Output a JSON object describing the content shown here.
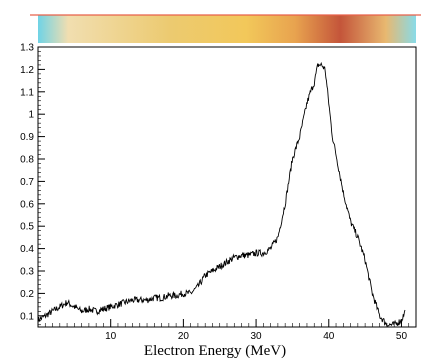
{
  "chart_data": {
    "type": "line",
    "title": "",
    "xlabel": "Electron Energy (MeV)",
    "ylabel": "",
    "xlim": [
      0,
      52
    ],
    "ylim": [
      0.05,
      1.3
    ],
    "grid": false,
    "x_ticks": [
      10,
      20,
      30,
      40,
      50
    ],
    "y_ticks": [
      0.1,
      0.2,
      0.3,
      0.4,
      0.5,
      0.6,
      0.7,
      0.8,
      0.9,
      1,
      1.1,
      1.2,
      1.3
    ],
    "spectrum_strip_colors": [
      "#6fd3e6",
      "#f1deb0",
      "#ecca70",
      "#f2c85a",
      "#e8a34f",
      "#c4553a",
      "#e8b870",
      "#88dbe8"
    ],
    "header_line_color": "#e8604a",
    "series": [
      {
        "values_x": [
          0,
          1,
          2,
          3,
          4,
          5,
          6,
          7,
          8,
          9,
          10,
          11,
          12,
          13,
          14,
          15,
          16,
          17,
          18,
          19,
          20,
          21,
          22,
          23,
          24,
          25,
          26,
          27,
          28,
          29,
          30,
          31,
          32,
          33,
          34,
          35,
          36,
          37,
          37.5,
          38,
          38.5,
          39,
          39.5,
          40,
          40.5,
          41,
          42,
          43,
          44,
          45,
          46,
          47,
          48,
          49,
          50,
          50.5
        ],
        "values_y": [
          0.08,
          0.1,
          0.12,
          0.14,
          0.16,
          0.14,
          0.12,
          0.13,
          0.12,
          0.13,
          0.14,
          0.15,
          0.16,
          0.17,
          0.17,
          0.17,
          0.18,
          0.18,
          0.19,
          0.19,
          0.2,
          0.2,
          0.23,
          0.28,
          0.3,
          0.32,
          0.34,
          0.36,
          0.37,
          0.37,
          0.38,
          0.38,
          0.4,
          0.45,
          0.6,
          0.8,
          0.9,
          1.05,
          1.1,
          1.14,
          1.22,
          1.22,
          1.2,
          1.05,
          0.9,
          0.82,
          0.65,
          0.52,
          0.45,
          0.35,
          0.2,
          0.1,
          0.06,
          0.06,
          0.08,
          0.12
        ]
      }
    ]
  }
}
